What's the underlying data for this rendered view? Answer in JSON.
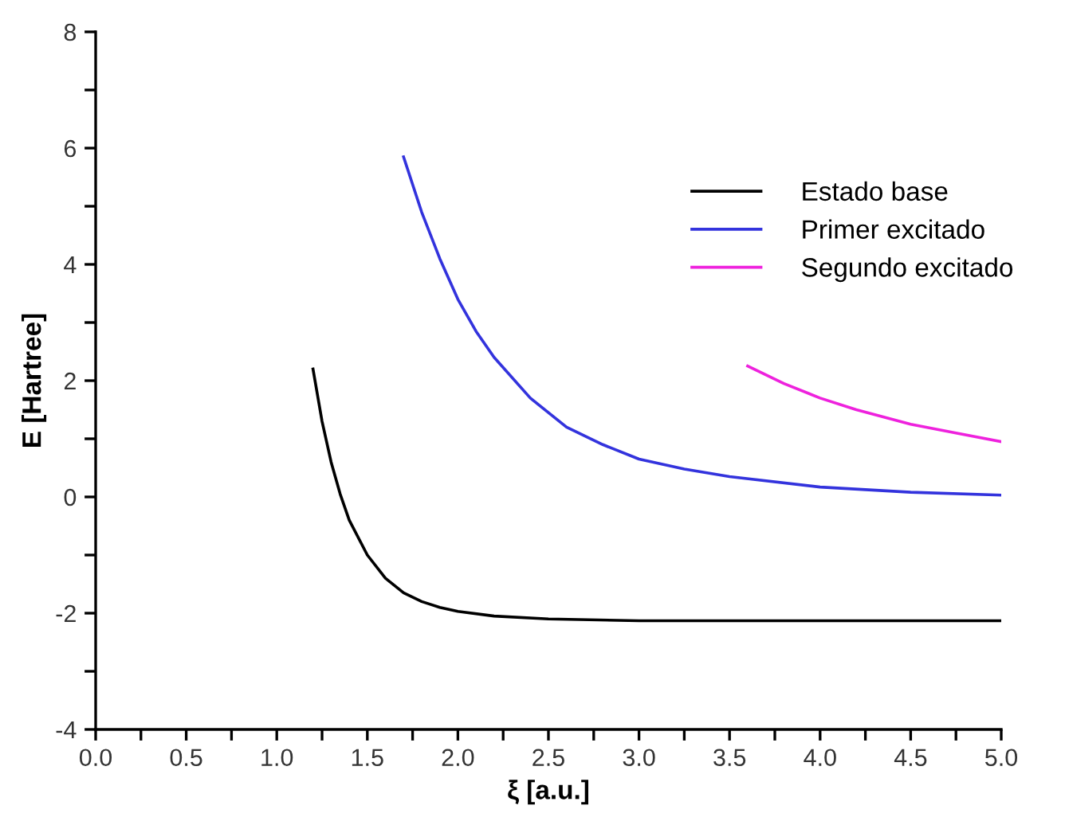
{
  "chart_data": {
    "type": "line",
    "xlabel": "ξ [a.u.]",
    "ylabel": "E [Hartree]",
    "xlim": [
      0,
      5
    ],
    "ylim": [
      -4,
      8
    ],
    "xticks": [
      {
        "value": 0,
        "label": "0.0"
      },
      {
        "value": 0.25,
        "label": null
      },
      {
        "value": 0.5,
        "label": "0.5"
      },
      {
        "value": 0.75,
        "label": null
      },
      {
        "value": 1,
        "label": "1.0"
      },
      {
        "value": 1.25,
        "label": null
      },
      {
        "value": 1.5,
        "label": "1.5"
      },
      {
        "value": 1.75,
        "label": null
      },
      {
        "value": 2,
        "label": "2.0"
      },
      {
        "value": 2.25,
        "label": null
      },
      {
        "value": 2.5,
        "label": "2.5"
      },
      {
        "value": 2.75,
        "label": null
      },
      {
        "value": 3,
        "label": "3.0"
      },
      {
        "value": 3.25,
        "label": null
      },
      {
        "value": 3.5,
        "label": "3.5"
      },
      {
        "value": 3.75,
        "label": null
      },
      {
        "value": 4,
        "label": "4.0"
      },
      {
        "value": 4.25,
        "label": null
      },
      {
        "value": 4.5,
        "label": "4.5"
      },
      {
        "value": 4.75,
        "label": null
      },
      {
        "value": 5,
        "label": "5.0"
      }
    ],
    "yticks": [
      -4,
      {
        "value": -3,
        "label": null
      },
      -2,
      {
        "value": -1,
        "label": null
      },
      0,
      {
        "value": 1,
        "label": null
      },
      2,
      {
        "value": 3,
        "label": null
      },
      4,
      {
        "value": 5,
        "label": null
      },
      6,
      {
        "value": 7,
        "label": null
      },
      8
    ],
    "grid": false,
    "legend": "top right",
    "line_style": "solid",
    "marker": "none",
    "series": [
      {
        "name": "Estado base",
        "color": "#000000",
        "x": [
          1.2,
          1.25,
          1.3,
          1.35,
          1.4,
          1.5,
          1.6,
          1.7,
          1.8,
          1.9,
          2.0,
          2.2,
          2.5,
          3.0,
          4.0,
          5.0
        ],
        "values": [
          2.2,
          1.3,
          0.6,
          0.05,
          -0.4,
          -1.0,
          -1.4,
          -1.65,
          -1.8,
          -1.9,
          -1.97,
          -2.05,
          -2.1,
          -2.13,
          -2.13,
          -2.13
        ]
      },
      {
        "name": "Primer excitado",
        "color": "#3333dd",
        "x": [
          1.7,
          1.8,
          1.9,
          2.0,
          2.1,
          2.2,
          2.4,
          2.6,
          2.8,
          3.0,
          3.25,
          3.5,
          4.0,
          4.5,
          5.0
        ],
        "values": [
          5.85,
          4.9,
          4.1,
          3.4,
          2.85,
          2.4,
          1.7,
          1.2,
          0.9,
          0.65,
          0.48,
          0.35,
          0.17,
          0.08,
          0.03
        ]
      },
      {
        "name": "Segundo excitado",
        "color": "#ee22dd",
        "x": [
          3.6,
          3.8,
          4.0,
          4.2,
          4.5,
          4.75,
          5.0
        ],
        "values": [
          2.25,
          1.95,
          1.7,
          1.5,
          1.25,
          1.1,
          0.95
        ]
      }
    ]
  }
}
